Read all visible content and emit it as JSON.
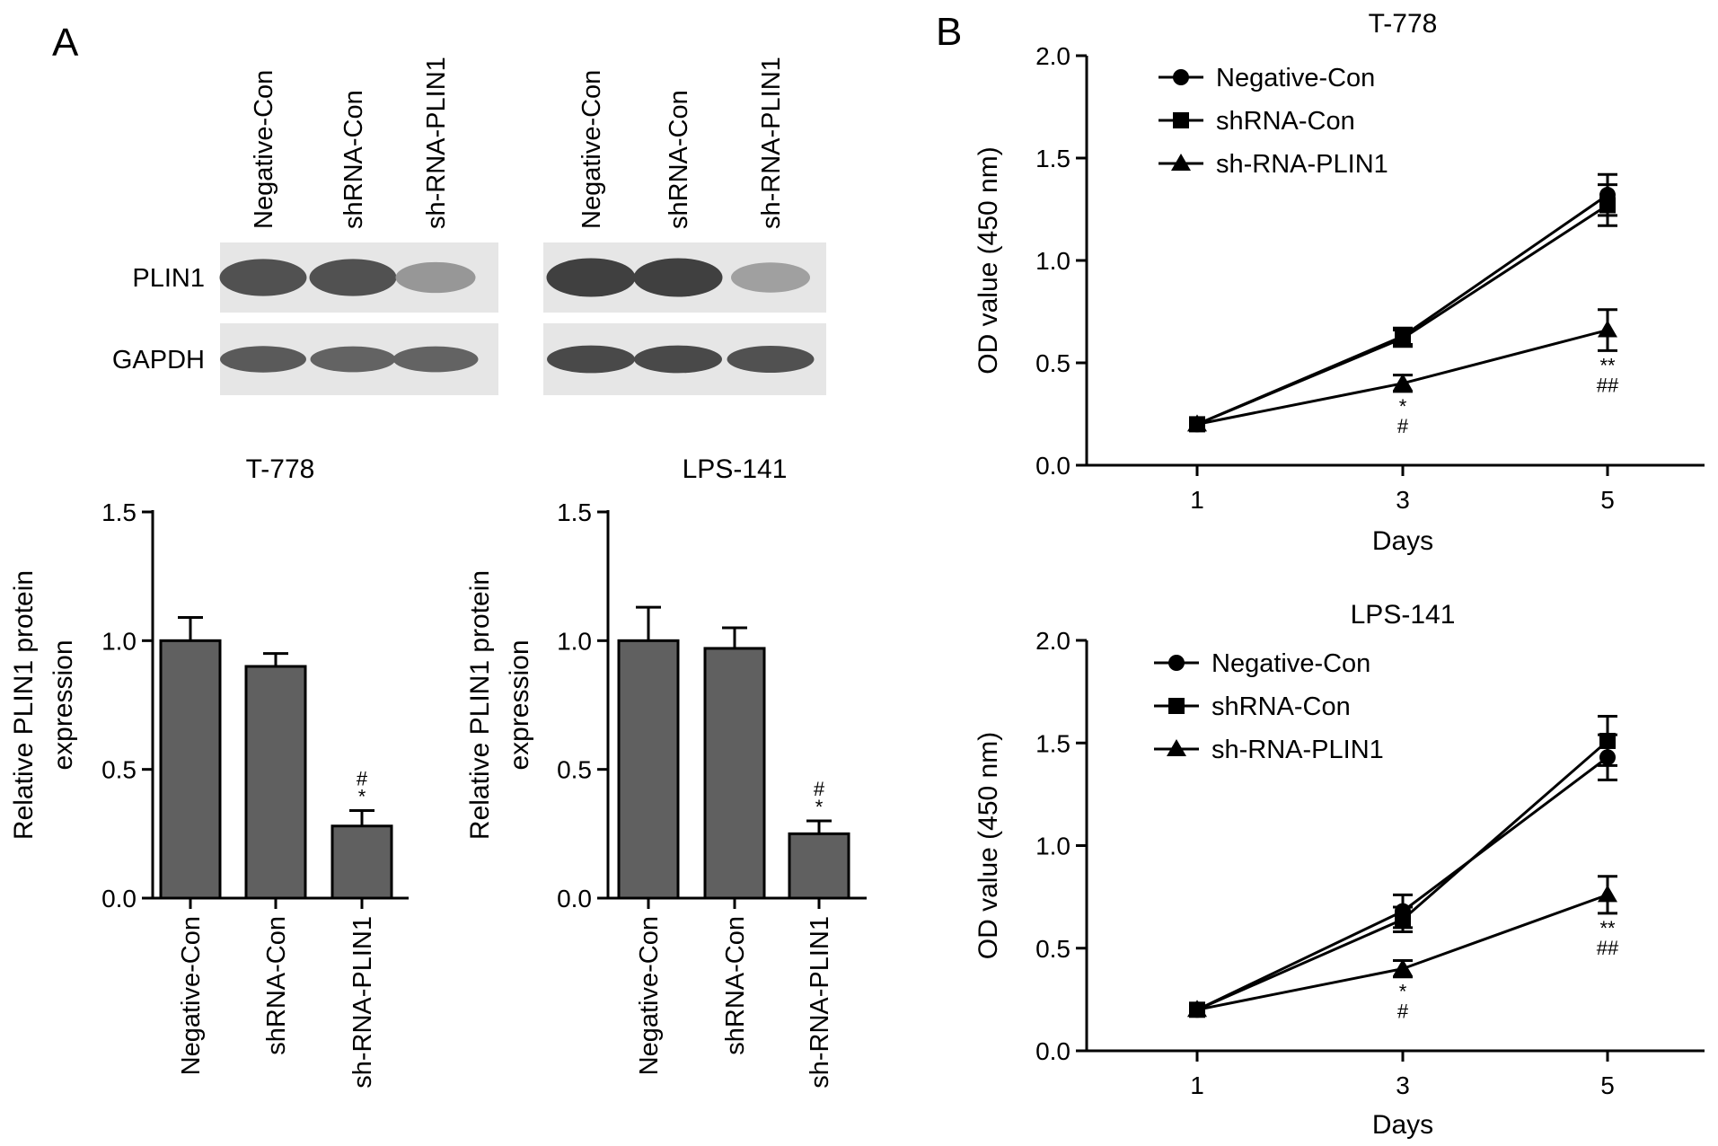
{
  "panels": {
    "a_label": "A",
    "b_label": "B"
  },
  "western_blot": {
    "lane_labels": [
      "Negative-Con",
      "shRNA-Con",
      "sh-RNA-PLIN1"
    ],
    "row_labels": [
      "PLIN1",
      "GAPDH"
    ],
    "blots": [
      {
        "plin1_band_levels": [
          0.85,
          0.85,
          0.45
        ],
        "gapdh_band_levels": [
          0.8,
          0.75,
          0.75
        ]
      },
      {
        "plin1_band_levels": [
          0.95,
          0.95,
          0.4
        ],
        "gapdh_band_levels": [
          0.9,
          0.9,
          0.85
        ]
      }
    ]
  },
  "chart_data": [
    {
      "id": "bar-t778",
      "type": "bar",
      "title": "T-778",
      "ylabel_line1": "Relative PLIN1 protein",
      "ylabel_line2": "expression",
      "categories": [
        "Negative-Con",
        "shRNA-Con",
        "sh-RNA-PLIN1"
      ],
      "values": [
        1.0,
        0.9,
        0.28
      ],
      "errors": [
        0.09,
        0.05,
        0.06
      ],
      "annotations": [
        [],
        [],
        [
          "#",
          "*"
        ]
      ],
      "ylim": [
        0,
        1.5
      ],
      "yticks": [
        "0.0",
        "0.5",
        "1.0",
        "1.5"
      ],
      "bar_color": "#606060"
    },
    {
      "id": "bar-lps141",
      "type": "bar",
      "title": "LPS-141",
      "ylabel_line1": "Relative PLIN1 protein",
      "ylabel_line2": "expression",
      "categories": [
        "Negative-Con",
        "shRNA-Con",
        "sh-RNA-PLIN1"
      ],
      "values": [
        1.0,
        0.97,
        0.25
      ],
      "errors": [
        0.13,
        0.08,
        0.05
      ],
      "annotations": [
        [],
        [],
        [
          "#",
          "*"
        ]
      ],
      "ylim": [
        0,
        1.5
      ],
      "yticks": [
        "0.0",
        "0.5",
        "1.0",
        "1.5"
      ],
      "bar_color": "#606060"
    },
    {
      "id": "line-t778",
      "type": "line",
      "title": "T-778",
      "xlabel": "Days",
      "ylabel": "OD value (450 nm)",
      "x": [
        1,
        3,
        5
      ],
      "xticks": [
        "1",
        "3",
        "5"
      ],
      "ylim": [
        0,
        2.0
      ],
      "yticks": [
        "0.0",
        "0.5",
        "1.0",
        "1.5",
        "2.0"
      ],
      "legend_position": "top-left",
      "series": [
        {
          "name": "Negative-Con",
          "marker": "circle",
          "values": [
            0.2,
            0.63,
            1.32
          ],
          "errors": [
            0,
            0.04,
            0.1
          ]
        },
        {
          "name": "shRNA-Con",
          "marker": "square",
          "values": [
            0.2,
            0.62,
            1.27
          ],
          "errors": [
            0,
            0.04,
            0.1
          ]
        },
        {
          "name": "sh-RNA-PLIN1",
          "marker": "triangle",
          "values": [
            0.2,
            0.4,
            0.66
          ],
          "errors": [
            0,
            0.04,
            0.1
          ]
        }
      ],
      "annotations": [
        {
          "x": 3,
          "lines": [
            "*",
            "#"
          ]
        },
        {
          "x": 5,
          "lines": [
            "**",
            "##"
          ]
        }
      ]
    },
    {
      "id": "line-lps141",
      "type": "line",
      "title": "LPS-141",
      "xlabel": "Days",
      "ylabel": "OD value (450 nm)",
      "x": [
        1,
        3,
        5
      ],
      "xticks": [
        "1",
        "3",
        "5"
      ],
      "ylim": [
        0,
        2.0
      ],
      "yticks": [
        "0.0",
        "0.5",
        "1.0",
        "1.5",
        "2.0"
      ],
      "legend_position": "top-left",
      "series": [
        {
          "name": "Negative-Con",
          "marker": "circle",
          "values": [
            0.2,
            0.68,
            1.43
          ],
          "errors": [
            0,
            0.08,
            0.11
          ]
        },
        {
          "name": "shRNA-Con",
          "marker": "square",
          "values": [
            0.2,
            0.64,
            1.51
          ],
          "errors": [
            0,
            0.06,
            0.12
          ]
        },
        {
          "name": "sh-RNA-PLIN1",
          "marker": "triangle",
          "values": [
            0.2,
            0.4,
            0.76
          ],
          "errors": [
            0,
            0.04,
            0.09
          ]
        }
      ],
      "annotations": [
        {
          "x": 3,
          "lines": [
            "*",
            "#"
          ]
        },
        {
          "x": 5,
          "lines": [
            "**",
            "##"
          ]
        }
      ]
    }
  ]
}
